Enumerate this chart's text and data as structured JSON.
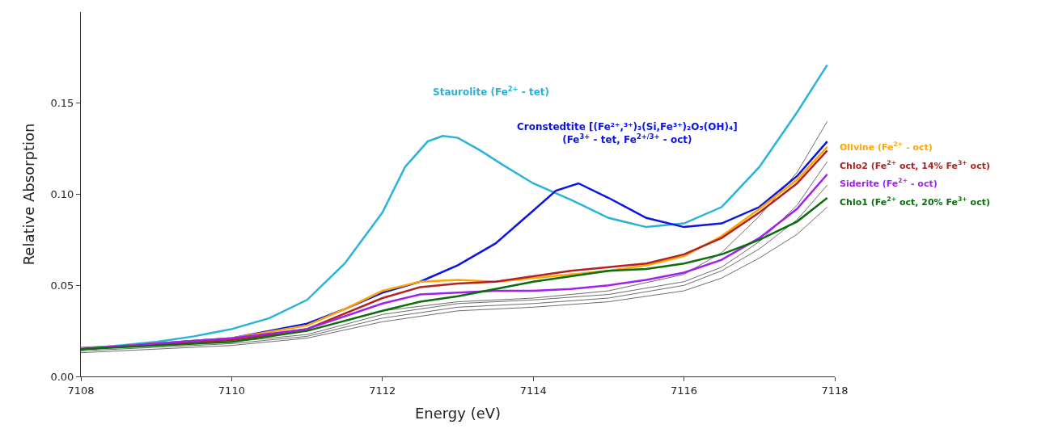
{
  "chart_data": {
    "type": "line",
    "xlabel": "Energy (eV)",
    "ylabel": "Relative Absorption",
    "xlim": [
      7108,
      7118
    ],
    "xticks": [
      7108,
      7110,
      7112,
      7114,
      7116,
      7118
    ],
    "ylim": [
      0,
      0.2
    ],
    "yticks": [
      {
        "value": 0,
        "label": "0.00"
      },
      {
        "value": 0.05,
        "label": "0.05"
      },
      {
        "value": 0.1,
        "label": "0.10"
      },
      {
        "value": 0.15,
        "label": "0.15"
      }
    ],
    "legend": false,
    "marker": "none",
    "line_style": "solid",
    "series": [
      {
        "color": "#6e6e6e",
        "x": [
          7108,
          7110,
          7111,
          7112,
          7113,
          7114,
          7115,
          7116,
          7116.5,
          7117,
          7117.5,
          7117.9
        ],
        "values": [
          0.016,
          0.02,
          0.025,
          0.036,
          0.041,
          0.043,
          0.047,
          0.056,
          0.068,
          0.088,
          0.112,
          0.14
        ]
      },
      {
        "color": "#6e6e6e",
        "x": [
          7108,
          7110,
          7111,
          7112,
          7113,
          7114,
          7115,
          7116,
          7116.5,
          7117,
          7117.5,
          7117.9
        ],
        "values": [
          0.015,
          0.019,
          0.023,
          0.034,
          0.04,
          0.042,
          0.045,
          0.052,
          0.06,
          0.074,
          0.094,
          0.118
        ]
      },
      {
        "color": "#6e6e6e",
        "x": [
          7108,
          7110,
          7111,
          7112,
          7113,
          7114,
          7115,
          7116,
          7116.5,
          7117,
          7117.5,
          7117.9
        ],
        "values": [
          0.014,
          0.018,
          0.022,
          0.032,
          0.038,
          0.04,
          0.043,
          0.05,
          0.058,
          0.07,
          0.086,
          0.105
        ]
      },
      {
        "color": "#6e6e6e",
        "x": [
          7108,
          7110,
          7111,
          7112,
          7113,
          7114,
          7115,
          7116,
          7116.5,
          7117,
          7117.5,
          7117.9
        ],
        "values": [
          0.013,
          0.017,
          0.021,
          0.03,
          0.036,
          0.038,
          0.041,
          0.047,
          0.054,
          0.065,
          0.078,
          0.093
        ]
      },
      {
        "name": "Staurolite (Fe$^{2+}$ - tet)",
        "color": "#29b3d9",
        "x": [
          7108,
          7109,
          7109.5,
          7110,
          7110.5,
          7111,
          7111.5,
          7112,
          7112.3,
          7112.6,
          7112.8,
          7113,
          7113.3,
          7113.6,
          7114,
          7114.5,
          7115,
          7115.5,
          7116,
          7116.5,
          7117,
          7117.5,
          7117.9
        ],
        "values": [
          0.015,
          0.019,
          0.022,
          0.026,
          0.032,
          0.042,
          0.062,
          0.09,
          0.115,
          0.129,
          0.132,
          0.131,
          0.124,
          0.116,
          0.106,
          0.097,
          0.087,
          0.082,
          0.084,
          0.093,
          0.115,
          0.145,
          0.171
        ]
      },
      {
        "name": "Cronstedtite [(Fe²⁺,³⁺)₃(Si,Fe³⁺)₂O₅(OH)₄]\n(Fe$^{3+}$ - tet, Fe$^{2+/3+}$ - oct)",
        "color": "#0a14e6",
        "x": [
          7108,
          7110,
          7111,
          7111.5,
          7112,
          7112.5,
          7113,
          7113.5,
          7114,
          7114.3,
          7114.6,
          7115,
          7115.5,
          7116,
          7116.5,
          7117,
          7117.5,
          7117.9
        ],
        "values": [
          0.015,
          0.021,
          0.029,
          0.037,
          0.046,
          0.052,
          0.061,
          0.073,
          0.091,
          0.102,
          0.106,
          0.098,
          0.087,
          0.082,
          0.084,
          0.093,
          0.11,
          0.129
        ]
      },
      {
        "name": "Olivine (Fe$^{2+}$ - oct)",
        "color": "#ffa500",
        "x": [
          7108,
          7110,
          7111,
          7111.5,
          7112,
          7112.5,
          7113,
          7113.5,
          7114,
          7114.5,
          7115,
          7115.5,
          7116,
          7116.5,
          7117,
          7117.5,
          7117.9
        ],
        "values": [
          0.015,
          0.021,
          0.028,
          0.037,
          0.047,
          0.052,
          0.053,
          0.052,
          0.054,
          0.056,
          0.058,
          0.061,
          0.066,
          0.077,
          0.092,
          0.108,
          0.126
        ]
      },
      {
        "name": "Chlo2 (Fe$^{2+}$ oct, 14% Fe$^{3+}$ oct)",
        "color": "#b22222",
        "x": [
          7108,
          7110,
          7111,
          7112,
          7112.5,
          7113,
          7113.5,
          7114,
          7114.5,
          7115,
          7115.5,
          7116,
          7116.5,
          7117,
          7117.5,
          7117.9
        ],
        "values": [
          0.015,
          0.02,
          0.026,
          0.043,
          0.049,
          0.051,
          0.052,
          0.055,
          0.058,
          0.06,
          0.062,
          0.067,
          0.076,
          0.09,
          0.106,
          0.124
        ]
      },
      {
        "name": "Siderite (Fe$^{2+}$ - oct)",
        "color": "#a020f0",
        "x": [
          7108,
          7110,
          7111,
          7112,
          7112.5,
          7113,
          7113.5,
          7114,
          7114.5,
          7115,
          7115.5,
          7116,
          7116.5,
          7117,
          7117.5,
          7117.9
        ],
        "values": [
          0.015,
          0.021,
          0.026,
          0.04,
          0.045,
          0.046,
          0.047,
          0.047,
          0.048,
          0.05,
          0.053,
          0.057,
          0.064,
          0.076,
          0.092,
          0.111
        ]
      },
      {
        "name": "Chlo1 (Fe$^{2+}$ oct, 20% Fe$^{3+}$ oct)",
        "color": "#0a6e0a",
        "x": [
          7108,
          7110,
          7111,
          7112,
          7112.5,
          7113,
          7113.5,
          7114,
          7114.5,
          7115,
          7115.5,
          7116,
          7116.5,
          7117,
          7117.5,
          7117.9
        ],
        "values": [
          0.015,
          0.019,
          0.025,
          0.036,
          0.041,
          0.044,
          0.048,
          0.052,
          0.055,
          0.058,
          0.059,
          0.062,
          0.067,
          0.075,
          0.085,
          0.098
        ]
      }
    ]
  }
}
